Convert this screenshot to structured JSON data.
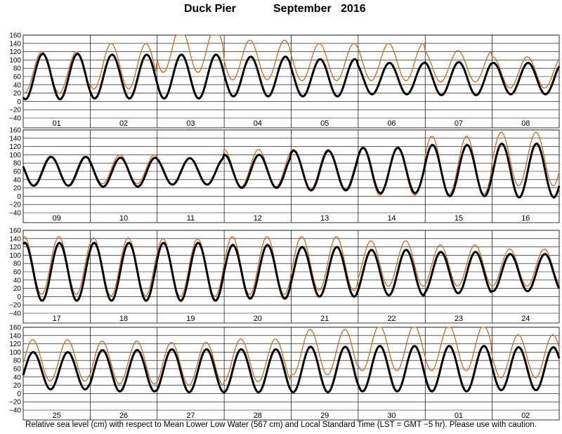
{
  "header": {
    "station": "Duck Pier",
    "month_year": "September   2016"
  },
  "footnote": "Relative sea level (cm) with respect to Mean Lower Low Water (567 cm) and Local Standard Time (LST = GMT −5 hr). Please use with caution.",
  "colors": {
    "predicted": "#000000",
    "observed": "#d2691e",
    "grid": "#000000"
  },
  "chart_data": [
    {
      "type": "line",
      "days": [
        "01",
        "02",
        "03",
        "04",
        "05",
        "06",
        "07",
        "08"
      ],
      "ylim": [
        -40,
        160
      ],
      "ytick_labels": [
        "−40",
        "−20",
        "0",
        "20",
        "40",
        "60",
        "80",
        "100",
        "120",
        "140",
        "160"
      ],
      "series": [
        {
          "key": "predicted",
          "mean": [
            60,
            60,
            60,
            60,
            57,
            55,
            55,
            55
          ],
          "amp": [
            55,
            53,
            53,
            48,
            45,
            38,
            40,
            38
          ],
          "phase": 0
        },
        {
          "key": "observed",
          "mean": [
            70,
            85,
            125,
            100,
            95,
            95,
            85,
            70
          ],
          "amp": [
            50,
            55,
            55,
            48,
            45,
            45,
            38,
            38
          ],
          "phase": -0.3
        }
      ]
    },
    {
      "type": "line",
      "days": [
        "09",
        "10",
        "11",
        "12",
        "13",
        "14",
        "15",
        "16"
      ],
      "ylim": [
        -40,
        160
      ],
      "ytick_labels": [
        "−40",
        "−20",
        "0",
        "20",
        "40",
        "60",
        "80",
        "100",
        "120",
        "140",
        "160"
      ],
      "series": [
        {
          "key": "predicted",
          "mean": [
            60,
            58,
            60,
            60,
            62,
            62,
            62,
            62
          ],
          "amp": [
            35,
            35,
            32,
            40,
            48,
            55,
            62,
            65
          ],
          "phase": 0
        },
        {
          "key": "observed",
          "mean": [
            62,
            65,
            60,
            68,
            65,
            60,
            75,
            90
          ],
          "amp": [
            35,
            35,
            32,
            45,
            48,
            58,
            70,
            65
          ],
          "phase": -0.2
        }
      ]
    },
    {
      "type": "line",
      "days": [
        "17",
        "18",
        "19",
        "20",
        "21",
        "22",
        "23",
        "24"
      ],
      "ylim": [
        -40,
        160
      ],
      "ytick_labels": [
        "−40",
        "−20",
        "0",
        "20",
        "40",
        "60",
        "80",
        "100",
        "120",
        "140",
        "160"
      ],
      "series": [
        {
          "key": "predicted",
          "mean": [
            60,
            60,
            60,
            60,
            60,
            58,
            58,
            58
          ],
          "amp": [
            70,
            70,
            70,
            65,
            60,
            55,
            50,
            45
          ],
          "phase": 0
        },
        {
          "key": "observed",
          "mean": [
            75,
            72,
            70,
            75,
            80,
            80,
            75,
            70
          ],
          "amp": [
            70,
            70,
            70,
            70,
            65,
            55,
            50,
            45
          ],
          "phase": -0.2
        }
      ]
    },
    {
      "type": "line",
      "days": [
        "25",
        "26",
        "27",
        "28",
        "29",
        "30",
        "01",
        "02"
      ],
      "ylim": [
        -40,
        160
      ],
      "ytick_labels": [
        "−40",
        "−20",
        "0",
        "20",
        "40",
        "60",
        "80",
        "100",
        "120",
        "140",
        "160"
      ],
      "series": [
        {
          "key": "predicted",
          "mean": [
            55,
            55,
            55,
            55,
            58,
            60,
            60,
            60
          ],
          "amp": [
            45,
            50,
            52,
            52,
            55,
            55,
            55,
            52
          ],
          "phase": 0
        },
        {
          "key": "observed",
          "mean": [
            80,
            75,
            72,
            80,
            100,
            110,
            110,
            90
          ],
          "amp": [
            50,
            52,
            52,
            52,
            55,
            55,
            55,
            52
          ],
          "phase": -0.15
        }
      ]
    }
  ]
}
